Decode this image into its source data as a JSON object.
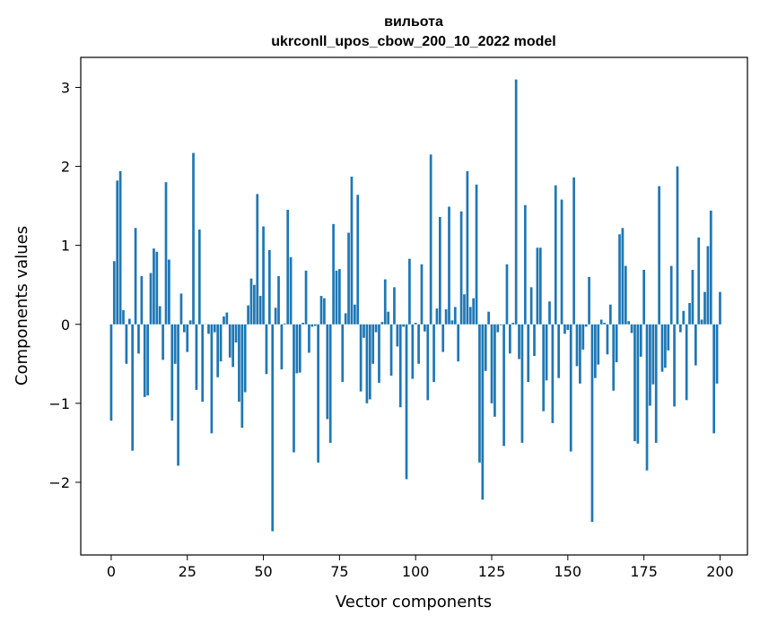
{
  "chart_data": {
    "type": "bar",
    "title": "вильота",
    "subtitle": "ukrconll_upos_cbow_200_10_2022 model",
    "xlabel": "Vector components",
    "ylabel": "Components values",
    "xlim": [
      -10,
      209
    ],
    "ylim": [
      -2.92,
      3.38
    ],
    "xticks": [
      0,
      25,
      50,
      75,
      100,
      125,
      150,
      175,
      200
    ],
    "yticks": [
      -2,
      -1,
      0,
      1,
      2,
      3
    ],
    "grid": false,
    "bar_color": "#1f77b4",
    "values": [
      -1.22,
      0.8,
      1.82,
      1.94,
      0.18,
      -0.5,
      0.07,
      -1.6,
      1.22,
      -0.37,
      0.61,
      -0.92,
      -0.9,
      0.65,
      0.96,
      0.92,
      0.23,
      -0.45,
      1.8,
      0.82,
      -1.22,
      -0.5,
      -1.79,
      0.39,
      -0.1,
      -0.35,
      0.05,
      2.17,
      -0.83,
      1.2,
      -0.98,
      0.0,
      -0.12,
      -1.38,
      -0.1,
      -0.67,
      -0.47,
      0.1,
      0.15,
      -0.42,
      -0.54,
      -0.23,
      -0.98,
      -1.31,
      -0.86,
      0.24,
      0.58,
      0.5,
      1.65,
      0.36,
      1.24,
      -0.63,
      0.94,
      -2.62,
      0.21,
      0.61,
      -0.57,
      0.01,
      1.45,
      0.85,
      -1.62,
      -0.62,
      -0.61,
      0.02,
      0.68,
      -0.36,
      -0.03,
      -0.02,
      -1.75,
      0.36,
      0.33,
      -1.2,
      -1.5,
      1.27,
      0.68,
      0.7,
      -0.73,
      0.14,
      1.16,
      1.87,
      0.25,
      1.64,
      -0.85,
      -0.17,
      -1.0,
      -0.95,
      -0.5,
      -0.1,
      -0.74,
      0.03,
      0.57,
      0.16,
      -0.65,
      0.47,
      -0.28,
      -1.05,
      -0.03,
      -1.96,
      0.83,
      -0.69,
      0.02,
      -0.5,
      0.76,
      -0.09,
      -0.96,
      2.15,
      -0.73,
      0.2,
      1.36,
      -0.35,
      0.19,
      1.49,
      0.05,
      0.22,
      -0.47,
      1.43,
      0.38,
      1.94,
      0.22,
      0.33,
      1.77,
      -1.75,
      -2.22,
      -0.59,
      0.16,
      -1.0,
      -1.17,
      -0.1,
      -0.01,
      -1.54,
      0.76,
      -0.37,
      0.02,
      3.1,
      -0.44,
      -1.5,
      1.51,
      -0.73,
      0.47,
      -0.4,
      0.97,
      0.97,
      -1.1,
      -0.71,
      0.29,
      -1.25,
      1.76,
      -0.68,
      1.58,
      -0.12,
      -0.07,
      -1.61,
      1.86,
      -0.53,
      -0.75,
      -0.32,
      -0.03,
      0.6,
      -2.5,
      -0.68,
      -0.51,
      0.06,
      0.02,
      -0.38,
      0.25,
      -0.84,
      -0.48,
      1.14,
      1.22,
      0.74,
      0.04,
      -0.11,
      -1.48,
      -1.51,
      -0.41,
      0.69,
      -1.85,
      -1.03,
      -0.76,
      -1.5,
      1.75,
      -0.6,
      -0.55,
      -0.33,
      0.74,
      -1.04,
      2.0,
      -0.1,
      0.17,
      -0.96,
      0.27,
      0.69,
      -0.52,
      1.1,
      0.06,
      0.41,
      0.99,
      1.44,
      -1.38,
      -0.75,
      0.41
    ]
  }
}
